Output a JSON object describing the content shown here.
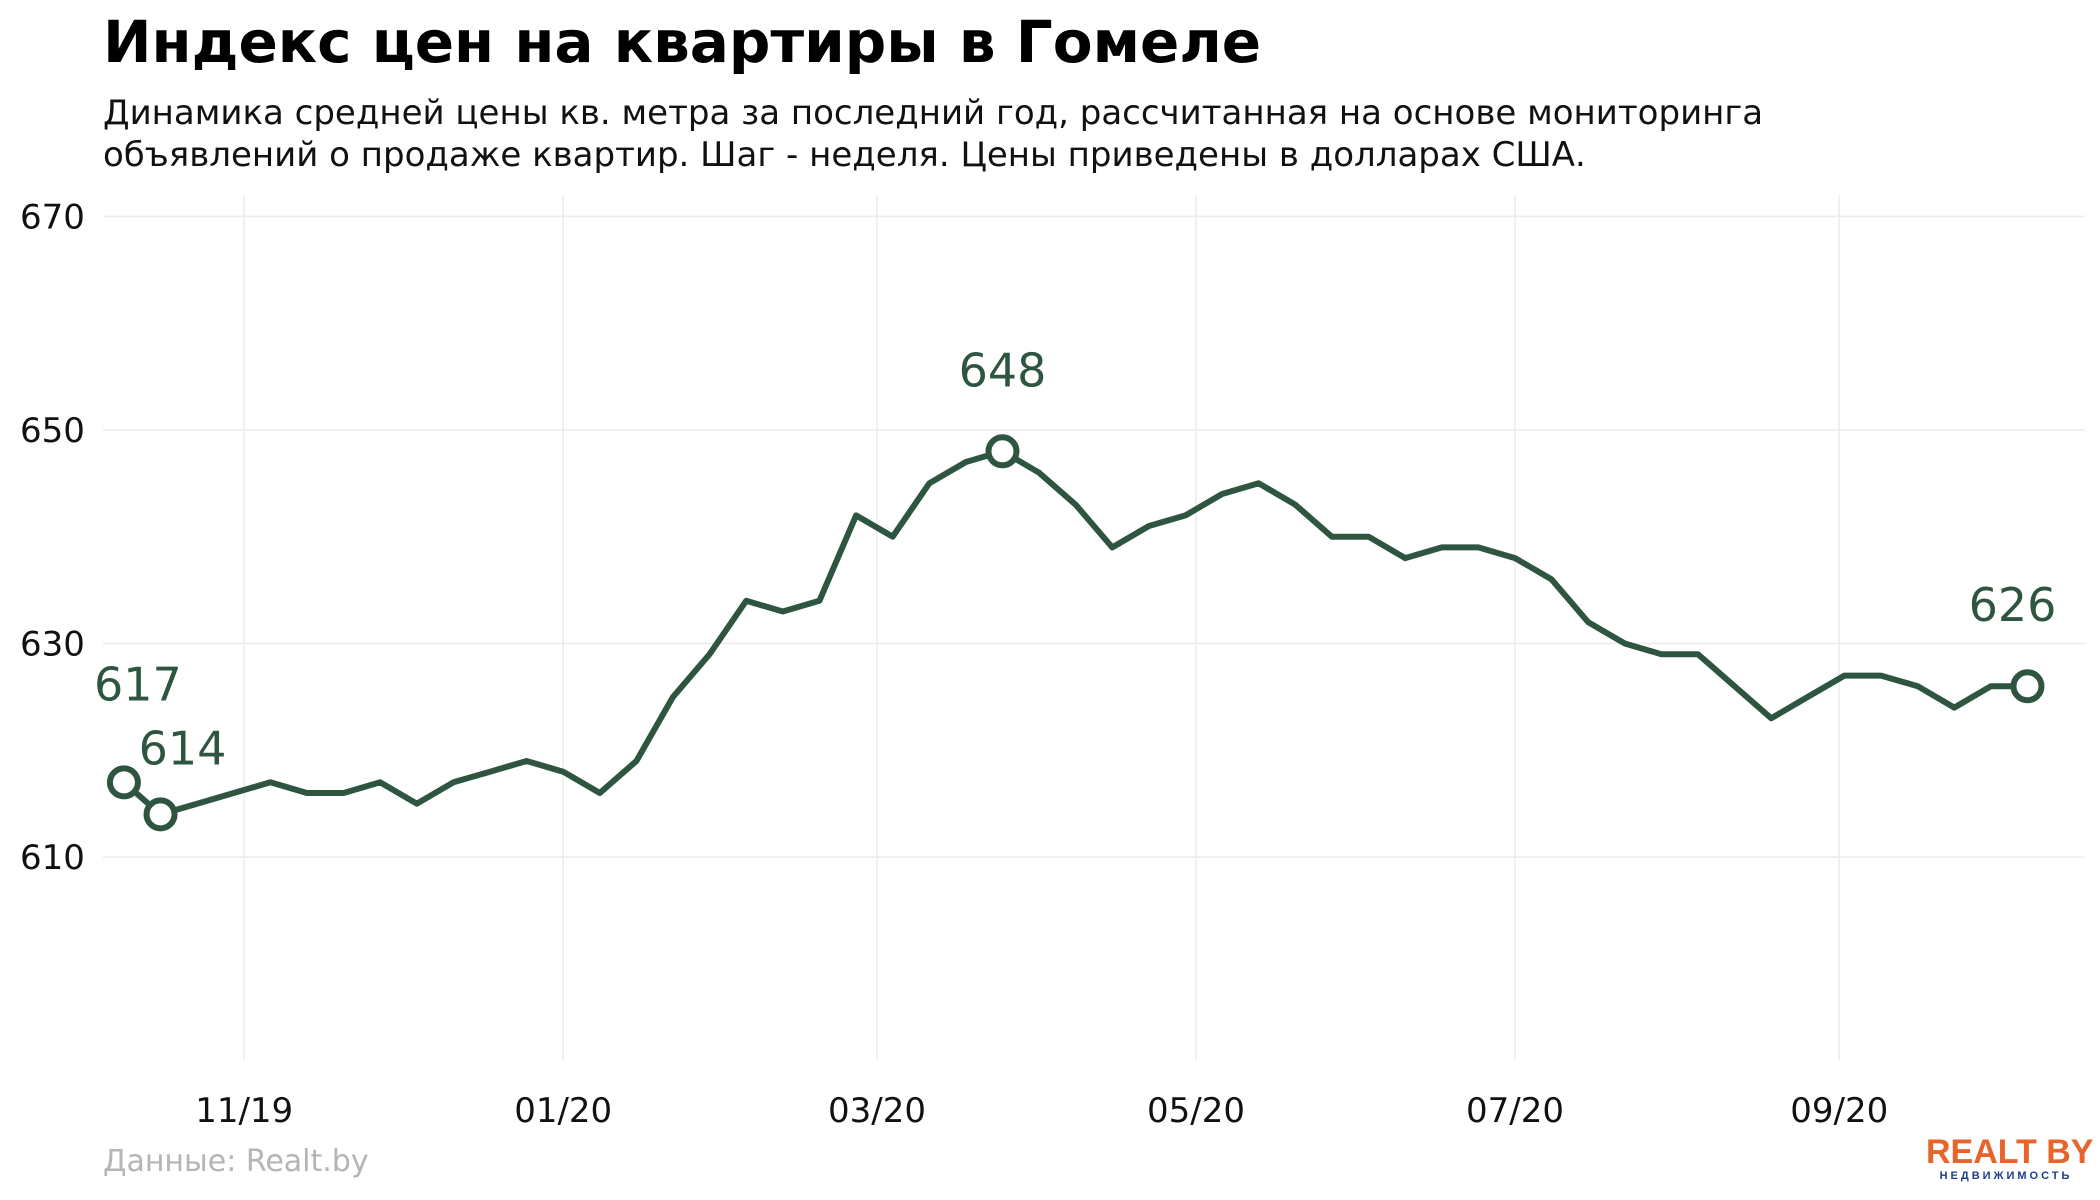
{
  "header": {
    "title": "Индекс цен на квартиры в Гомеле",
    "subtitle_line1": "Динамика средней цены кв. метра за последний год, рассчитанная на основе мониторинга",
    "subtitle_line2": "объявлений о продаже квартир. Шаг - неделя. Цены приведены в долларах США."
  },
  "footer": {
    "source": "Данные: Realt.by",
    "logo_main": "REALT BY",
    "logo_sub": "НЕДВИЖИМОСТЬ"
  },
  "colors": {
    "line": "#2e5540",
    "grid": "#ececec",
    "logo_orange": "#e8642a",
    "logo_blue": "#1e3c8c"
  },
  "chart_data": {
    "type": "line",
    "title": "Индекс цен на квартиры в Гомеле",
    "xlabel": "",
    "ylabel": "",
    "ylim": [
      591,
      672
    ],
    "y_ticks": [
      610,
      630,
      650,
      670
    ],
    "x_ticks": [
      {
        "label": "11/19",
        "date": "2019-11-01"
      },
      {
        "label": "01/20",
        "date": "2020-01-01"
      },
      {
        "label": "03/20",
        "date": "2020-03-01"
      },
      {
        "label": "05/20",
        "date": "2020-05-01"
      },
      {
        "label": "07/20",
        "date": "2020-07-01"
      },
      {
        "label": "09/20",
        "date": "2020-09-01"
      }
    ],
    "x_range": [
      "2019-10-05",
      "2020-10-18"
    ],
    "grid": true,
    "legend": "none",
    "series": [
      {
        "x": [
          "2019-10-09",
          "2019-10-16",
          "2019-10-23",
          "2019-10-30",
          "2019-11-06",
          "2019-11-13",
          "2019-11-20",
          "2019-11-27",
          "2019-12-04",
          "2019-12-11",
          "2019-12-18",
          "2019-12-25",
          "2020-01-01",
          "2020-01-08",
          "2020-01-15",
          "2020-01-22",
          "2020-01-29",
          "2020-02-05",
          "2020-02-12",
          "2020-02-19",
          "2020-02-26",
          "2020-03-04",
          "2020-03-11",
          "2020-03-18",
          "2020-03-25",
          "2020-04-01",
          "2020-04-08",
          "2020-04-15",
          "2020-04-22",
          "2020-04-29",
          "2020-05-06",
          "2020-05-13",
          "2020-05-20",
          "2020-05-27",
          "2020-06-03",
          "2020-06-10",
          "2020-06-17",
          "2020-06-24",
          "2020-07-01",
          "2020-07-08",
          "2020-07-15",
          "2020-07-22",
          "2020-07-29",
          "2020-08-05",
          "2020-08-12",
          "2020-08-19",
          "2020-08-26",
          "2020-09-02",
          "2020-09-09",
          "2020-09-16",
          "2020-09-23",
          "2020-09-30",
          "2020-10-07"
        ],
        "values": [
          617,
          614,
          615,
          616,
          617,
          616,
          616,
          617,
          615,
          617,
          618,
          619,
          618,
          616,
          619,
          625,
          629,
          634,
          633,
          634,
          642,
          640,
          645,
          647,
          648,
          646,
          643,
          639,
          641,
          642,
          644,
          645,
          643,
          640,
          640,
          638,
          639,
          639,
          638,
          636,
          632,
          630,
          629,
          629,
          626,
          623,
          625,
          627,
          627,
          626,
          624,
          626,
          626
        ]
      }
    ],
    "annotations": [
      {
        "label": "617",
        "x": "2019-10-09",
        "y": 617,
        "marker": true
      },
      {
        "label": "614",
        "x": "2019-10-16",
        "y": 614,
        "marker": true
      },
      {
        "label": "648",
        "x": "2020-03-25",
        "y": 648,
        "marker": true
      },
      {
        "label": "626",
        "x": "2020-10-07",
        "y": 626,
        "marker": true
      }
    ]
  }
}
